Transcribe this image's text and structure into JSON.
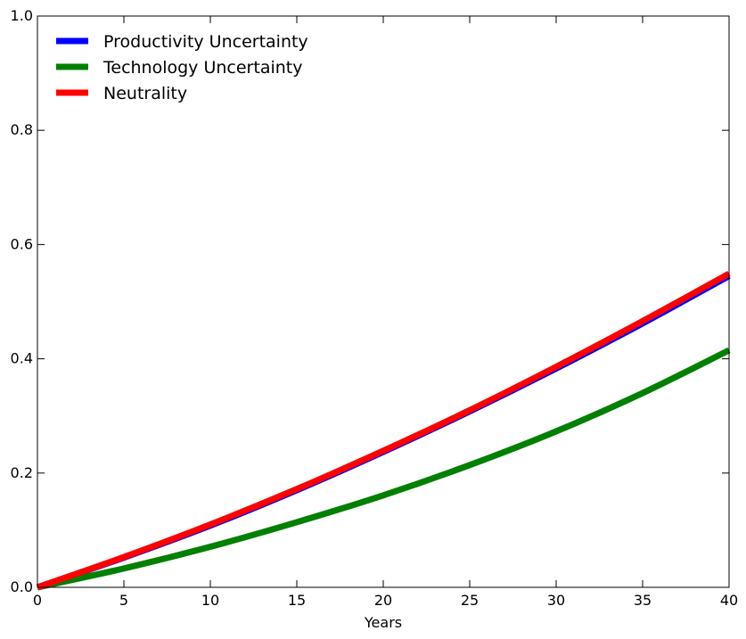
{
  "chart_data": {
    "type": "line",
    "title": "",
    "xlabel": "Years",
    "ylabel": "",
    "xlim": [
      0,
      40
    ],
    "ylim": [
      0.0,
      1.0
    ],
    "xticks": [
      "0",
      "5",
      "10",
      "15",
      "20",
      "25",
      "30",
      "35",
      "40"
    ],
    "yticks": [
      "0.0",
      "0.2",
      "0.4",
      "0.6",
      "0.8",
      "1.0"
    ],
    "grid": false,
    "legend_position": "top-left",
    "x": [
      0,
      5,
      10,
      15,
      20,
      25,
      30,
      35,
      40
    ],
    "series": [
      {
        "name": "Productivity Uncertainty",
        "color": "#0000ff",
        "values": [
          0.0,
          0.052,
          0.108,
          0.17,
          0.237,
          0.308,
          0.383,
          0.462,
          0.545
        ]
      },
      {
        "name": "Technology Uncertainty",
        "color": "#008000",
        "values": [
          0.0,
          0.033,
          0.071,
          0.114,
          0.161,
          0.214,
          0.273,
          0.34,
          0.415
        ]
      },
      {
        "name": "Neutrality",
        "color": "#ff0000",
        "values": [
          0.0,
          0.053,
          0.11,
          0.172,
          0.239,
          0.31,
          0.386,
          0.466,
          0.549
        ]
      }
    ]
  }
}
